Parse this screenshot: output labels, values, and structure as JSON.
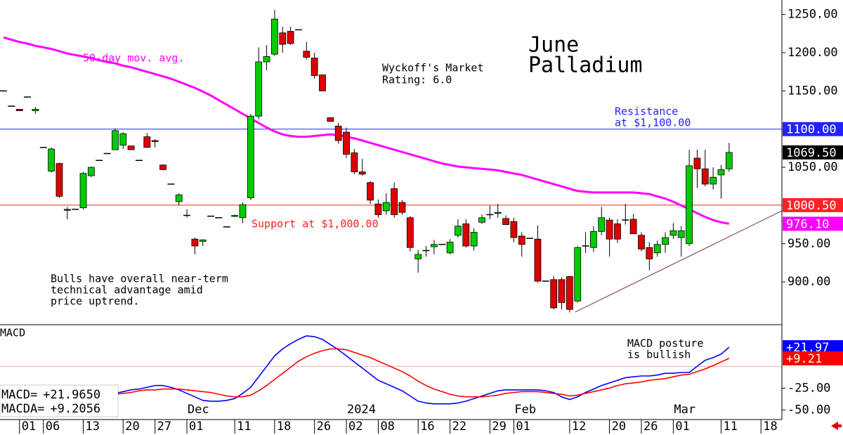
{
  "chart_data": [
    {
      "type": "candlestick",
      "title": "June",
      "subtitle": "Palladium",
      "categories": [
        null,
        null,
        "01",
        null,
        null,
        "06",
        null,
        null,
        null,
        null,
        "13",
        null,
        null,
        null,
        null,
        "20",
        null,
        null,
        null,
        "27",
        null,
        null,
        null,
        "01",
        null,
        null,
        null,
        null,
        null,
        "11",
        null,
        null,
        null,
        null,
        "18",
        null,
        null,
        null,
        null,
        "26",
        null,
        null,
        null,
        "02",
        null,
        null,
        null,
        "08",
        null,
        null,
        null,
        null,
        "16",
        null,
        null,
        null,
        "22",
        null,
        null,
        null,
        null,
        "29",
        null,
        null,
        "01",
        null,
        null,
        null,
        null,
        null,
        null,
        "12",
        null,
        null,
        null,
        null,
        "20",
        null,
        null,
        null,
        "26",
        null,
        null,
        null,
        "01",
        null,
        null,
        null,
        null,
        null,
        "11",
        null,
        null,
        null,
        null,
        "18"
      ],
      "month_labels": [
        null,
        null,
        null,
        null,
        null,
        null,
        null,
        null,
        null,
        null,
        null,
        null,
        null,
        null,
        null,
        null,
        null,
        null,
        null,
        null,
        null,
        null,
        null,
        "Dec",
        null,
        null,
        null,
        null,
        null,
        null,
        null,
        null,
        null,
        null,
        null,
        null,
        null,
        null,
        null,
        null,
        null,
        null,
        null,
        "2024",
        null,
        null,
        null,
        null,
        null,
        null,
        null,
        null,
        null,
        null,
        null,
        null,
        null,
        null,
        null,
        null,
        null,
        null,
        null,
        null,
        "Feb",
        null,
        null,
        null,
        null,
        null,
        null,
        null,
        null,
        null,
        null,
        null,
        null,
        null,
        null,
        null,
        null,
        null,
        null,
        null,
        "Mar",
        null,
        null,
        null,
        null,
        null,
        null,
        null,
        null,
        null,
        null,
        null
      ],
      "open": [
        1150,
        1130,
        1126,
        1142,
        1124,
        1076,
        1045,
        1055,
        995,
        995,
        997,
        1039,
        1059,
        1068,
        1073,
        1079,
        1078,
        1059,
        1090,
        1085,
        1053,
        1028,
        1005,
        987,
        956,
        953,
        986,
        984,
        972,
        986,
        984,
        1010,
        1117,
        1188,
        1198,
        1226,
        1228,
        1230,
        1202,
        1193,
        1171,
        1115,
        1104,
        1096,
        1069,
        1044,
        1030,
        1002,
        993,
        1022,
        1004,
        984,
        930,
        941,
        946,
        949,
        938,
        961,
        976,
        947,
        978,
        988,
        990,
        983,
        979,
        960,
        957,
        956,
        901,
        903,
        903,
        907,
        875,
        947,
        945,
        966,
        981,
        976,
        981,
        982,
        961,
        945,
        938,
        949,
        961,
        958,
        950,
        1062,
        1048,
        1028,
        1040,
        1048,
        null,
        null,
        null,
        null
      ],
      "high": [
        1150,
        1130,
        1126,
        1142,
        1129,
        1076,
        1076,
        1056,
        998,
        995,
        1044,
        1051,
        1059,
        1068,
        1101,
        1096,
        1078,
        1059,
        1095,
        1087,
        1054,
        1028,
        1016,
        995,
        958,
        956,
        986,
        984,
        972,
        988,
        1004,
        1120,
        1207,
        1210,
        1256,
        1234,
        1234,
        1230,
        1214,
        1200,
        1171,
        1115,
        1108,
        1102,
        1074,
        1061,
        1032,
        1008,
        1016,
        1030,
        1007,
        986,
        942,
        947,
        955,
        949,
        956,
        982,
        982,
        970,
        988,
        1000,
        1002,
        987,
        984,
        965,
        957,
        974,
        901,
        908,
        906,
        908,
        947,
        965,
        973,
        998,
        984,
        982,
        1002,
        989,
        965,
        952,
        954,
        965,
        977,
        973,
        1073,
        1073,
        1073,
        1050,
        1053,
        1082,
        null,
        null,
        null,
        null
      ],
      "low": [
        1150,
        1130,
        1124,
        1142,
        1120,
        1076,
        1043,
        1010,
        982,
        995,
        995,
        1037,
        1059,
        1068,
        1073,
        1074,
        1073,
        1059,
        1076,
        1076,
        1046,
        1028,
        1000,
        984,
        936,
        947,
        986,
        984,
        972,
        985,
        977,
        1007,
        1113,
        1177,
        1196,
        1200,
        1210,
        1230,
        1191,
        1166,
        1150,
        1110,
        1081,
        1062,
        1041,
        1039,
        1002,
        984,
        988,
        984,
        988,
        940,
        912,
        933,
        936,
        949,
        936,
        958,
        945,
        941,
        976,
        982,
        984,
        974,
        952,
        933,
        957,
        899,
        901,
        864,
        864,
        860,
        873,
        938,
        939,
        961,
        933,
        951,
        975,
        963,
        940,
        915,
        933,
        938,
        956,
        933,
        947,
        1023,
        1025,
        1021,
        1009,
        1044,
        null,
        null,
        null,
        null
      ],
      "close": [
        1150,
        1130,
        1124,
        1142,
        1126,
        1076,
        1074,
        1012,
        994,
        995,
        1042,
        1050,
        1059,
        1068,
        1098,
        1094,
        1073,
        1059,
        1076,
        1084,
        1047,
        1028,
        1014,
        987,
        947,
        955,
        986,
        984,
        972,
        987,
        1001,
        1117,
        1188,
        1195,
        1244,
        1211,
        1212,
        1230,
        1194,
        1170,
        1150,
        1110,
        1085,
        1067,
        1044,
        1041,
        1007,
        988,
        1004,
        988,
        991,
        945,
        936,
        941,
        949,
        949,
        952,
        973,
        947,
        965,
        984,
        988,
        991,
        975,
        958,
        949,
        957,
        901,
        901,
        866,
        873,
        864,
        945,
        947,
        966,
        984,
        956,
        956,
        981,
        963,
        943,
        930,
        949,
        958,
        967,
        967,
        1052,
        1048,
        1028,
        1037,
        1047,
        1069.5,
        null,
        null,
        null,
        null
      ],
      "last_label": "1069.50",
      "up_color": "#00cc00",
      "down_color": "#dd0000",
      "series": [
        {
          "name": "50-day mov. avg.",
          "color": "#ff00ff",
          "last_label": "976.10",
          "values": [
            1220,
            1217,
            1214,
            1212,
            1209,
            1207,
            1205,
            1202,
            1199,
            1197,
            1195,
            1193,
            1190,
            1188,
            1186,
            1183,
            1181,
            1178,
            1175,
            1172,
            1169,
            1166,
            1162,
            1158,
            1154,
            1149,
            1144,
            1138,
            1132,
            1126,
            1120,
            1114,
            1108,
            1102,
            1097,
            1093,
            1091,
            1090,
            1090,
            1091,
            1092,
            1093,
            1092,
            1090,
            1088,
            1085,
            1082,
            1079,
            1076,
            1073,
            1070,
            1067,
            1064,
            1061,
            1058,
            1055,
            1053,
            1051,
            1050,
            1049,
            1048,
            1047,
            1046,
            1044,
            1042,
            1040,
            1037,
            1034,
            1031,
            1028,
            1025,
            1022,
            1019,
            1018,
            1017,
            1017,
            1017,
            1017,
            1017,
            1017,
            1016,
            1015,
            1012,
            1009,
            1005,
            1000,
            995,
            990,
            985,
            981,
            978,
            976.1,
            null,
            null,
            null,
            null
          ]
        }
      ],
      "reference_lines": [
        {
          "value": 1100,
          "label": "1100.00",
          "color": "#2222ff"
        },
        {
          "value": 1000.5,
          "label": "1000.50",
          "color": "#ff2222"
        }
      ],
      "ylim": [
        844,
        1269
      ],
      "yticks": [
        {
          "value": 1250,
          "label": "1250.00"
        },
        {
          "value": 1200,
          "label": "1200.00"
        },
        {
          "value": 1150,
          "label": "1150.00"
        },
        {
          "value": 1050,
          "label": "1050.00"
        },
        {
          "value": 950,
          "label": "950.00"
        },
        {
          "value": 900,
          "label": "900.00"
        }
      ],
      "annotations": {
        "rating": [
          "Wyckoff's Market",
          "Rating: 6.0"
        ],
        "resistance": [
          "Resistance",
          "at $1,100.00"
        ],
        "support": "Support at $1,000.00",
        "comment": [
          "Bulls have overall near-term",
          "technical advantage amid",
          "price uptrend."
        ]
      }
    },
    {
      "type": "line",
      "title": "MACD",
      "series": [
        {
          "name": "MACD=",
          "legend_value": "+21.9650",
          "axis_label": "+21.97",
          "color": "#0000ff",
          "values": [
            -23,
            -23,
            -24,
            -24,
            -25,
            -26,
            -28,
            -31,
            -34,
            -35,
            -35,
            -35,
            -34,
            -33,
            -31,
            -29,
            -27,
            -26,
            -24,
            -22,
            -22,
            -24,
            -27,
            -31,
            -35,
            -39,
            -40,
            -40,
            -39,
            -37,
            -31,
            -24,
            -12,
            0,
            12,
            20,
            26,
            31,
            35,
            34,
            31,
            25,
            19,
            12,
            5,
            -2,
            -9,
            -16,
            -20,
            -24,
            -28,
            -34,
            -40,
            -42,
            -43,
            -43,
            -43,
            -42,
            -40,
            -37,
            -34,
            -31,
            -28,
            -27,
            -27,
            -27,
            -27,
            -27,
            -28,
            -30,
            -35,
            -38,
            -35,
            -30,
            -26,
            -22,
            -19,
            -16,
            -13,
            -12,
            -11,
            -11,
            -10,
            -8,
            -8,
            -7,
            -7,
            0,
            7,
            10,
            14,
            21.965,
            null,
            null,
            null,
            null
          ]
        },
        {
          "name": "MACDA=",
          "legend_value": "+9.2056",
          "axis_label": "+9.21",
          "color": "#ff0000",
          "values": [
            -26,
            -26,
            -26,
            -26,
            -27,
            -28,
            -29,
            -31,
            -33,
            -34,
            -35,
            -35,
            -34,
            -33,
            -32,
            -31,
            -30,
            -28,
            -27,
            -27,
            -26,
            -26,
            -26,
            -27,
            -28,
            -29,
            -30,
            -32,
            -34,
            -35,
            -35,
            -33,
            -28,
            -22,
            -15,
            -8,
            -1,
            6,
            11,
            15,
            18,
            20,
            20,
            19,
            16,
            13,
            10,
            6,
            2,
            -2,
            -6,
            -11,
            -17,
            -22,
            -26,
            -29,
            -32,
            -34,
            -35,
            -35,
            -35,
            -34,
            -33,
            -31,
            -30,
            -29,
            -29,
            -29,
            -30,
            -31,
            -32,
            -34,
            -33,
            -31,
            -29,
            -27,
            -25,
            -22,
            -20,
            -19,
            -18,
            -16,
            -15,
            -14,
            -12,
            -10,
            -9,
            -6,
            -3,
            1,
            5,
            9.2056,
            null,
            null,
            null,
            null
          ]
        }
      ],
      "ylim": [
        -61,
        47
      ],
      "yticks": [
        {
          "value": -25,
          "label": "-25.00"
        },
        {
          "value": -50,
          "label": "-50.00"
        }
      ],
      "annotation": [
        "MACD posture",
        "is bullish"
      ]
    }
  ]
}
